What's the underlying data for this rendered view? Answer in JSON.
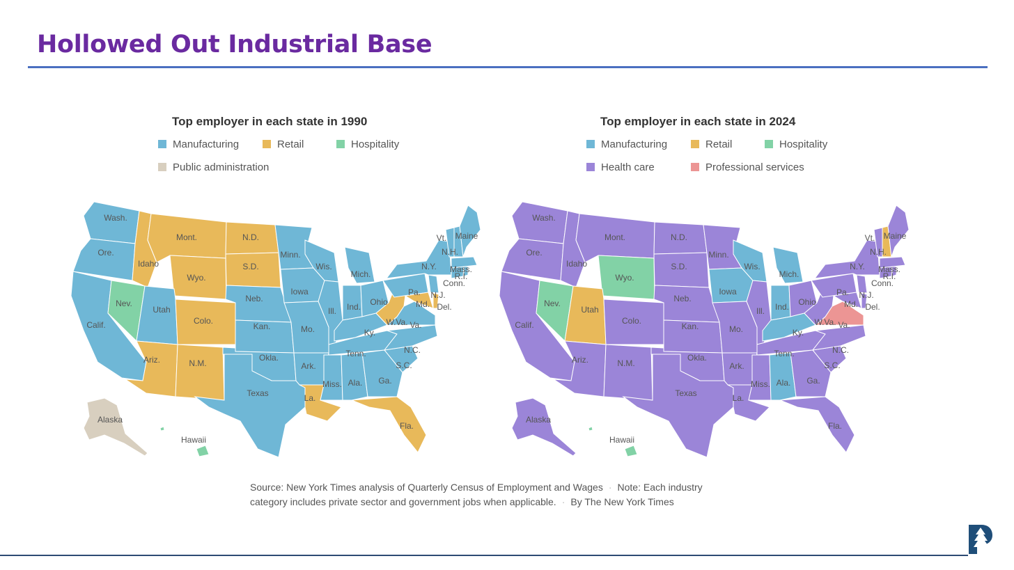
{
  "slide": {
    "title": "Hollowed Out Industrial Base"
  },
  "colors": {
    "Manufacturing": "#6fb7d6",
    "Retail": "#e8b95a",
    "Hospitality": "#82d2a6",
    "Public administration": "#d8cfbf",
    "Health care": "#9b85d8",
    "Professional services": "#ec9594",
    "border": "#ffffff",
    "title": "#6a2aa0",
    "rule": "#4a6fc0"
  },
  "maps": [
    {
      "title": "Top employer in each state in 1990",
      "legend": [
        "Manufacturing",
        "Retail",
        "Hospitality",
        "Public administration"
      ],
      "states": {
        "Wash.": "Manufacturing",
        "Ore.": "Manufacturing",
        "Calif.": "Manufacturing",
        "Nev.": "Hospitality",
        "Idaho": "Retail",
        "Mont.": "Retail",
        "Wyo.": "Retail",
        "Utah": "Manufacturing",
        "Colo.": "Retail",
        "Ariz.": "Retail",
        "N.M.": "Retail",
        "N.D.": "Retail",
        "S.D.": "Retail",
        "Neb.": "Manufacturing",
        "Kan.": "Manufacturing",
        "Okla.": "Manufacturing",
        "Texas": "Manufacturing",
        "Minn.": "Manufacturing",
        "Iowa": "Manufacturing",
        "Mo.": "Manufacturing",
        "Ark.": "Manufacturing",
        "La.": "Retail",
        "Wis.": "Manufacturing",
        "Ill.": "Manufacturing",
        "Mich.": "Manufacturing",
        "Ind.": "Manufacturing",
        "Ohio": "Manufacturing",
        "Ky.": "Manufacturing",
        "Tenn.": "Manufacturing",
        "Miss.": "Manufacturing",
        "Ala.": "Manufacturing",
        "Ga.": "Manufacturing",
        "Fla.": "Retail",
        "S.C.": "Manufacturing",
        "N.C.": "Manufacturing",
        "Va.": "Manufacturing",
        "W.Va.": "Retail",
        "Pa.": "Manufacturing",
        "N.Y.": "Manufacturing",
        "Md.": "Retail",
        "Del.": "Retail",
        "N.J.": "Manufacturing",
        "Conn.": "Manufacturing",
        "R.I.": "Manufacturing",
        "Mass.": "Manufacturing",
        "Vt.": "Manufacturing",
        "N.H.": "Manufacturing",
        "Maine": "Manufacturing",
        "Alaska": "Public administration",
        "Hawaii": "Hospitality"
      }
    },
    {
      "title": "Top employer in each state in 2024",
      "legend": [
        "Manufacturing",
        "Retail",
        "Hospitality",
        "Health care",
        "Professional services"
      ],
      "states": {
        "Wash.": "Health care",
        "Ore.": "Health care",
        "Calif.": "Health care",
        "Nev.": "Hospitality",
        "Idaho": "Health care",
        "Mont.": "Health care",
        "Wyo.": "Hospitality",
        "Utah": "Retail",
        "Colo.": "Health care",
        "Ariz.": "Health care",
        "N.M.": "Health care",
        "N.D.": "Health care",
        "S.D.": "Health care",
        "Neb.": "Health care",
        "Kan.": "Health care",
        "Okla.": "Health care",
        "Texas": "Health care",
        "Minn.": "Health care",
        "Iowa": "Manufacturing",
        "Mo.": "Health care",
        "Ark.": "Health care",
        "La.": "Health care",
        "Wis.": "Manufacturing",
        "Ill.": "Health care",
        "Mich.": "Manufacturing",
        "Ind.": "Manufacturing",
        "Ohio": "Health care",
        "Ky.": "Manufacturing",
        "Tenn.": "Health care",
        "Miss.": "Health care",
        "Ala.": "Manufacturing",
        "Ga.": "Health care",
        "Fla.": "Health care",
        "S.C.": "Health care",
        "N.C.": "Health care",
        "Va.": "Professional services",
        "W.Va.": "Health care",
        "Pa.": "Health care",
        "N.Y.": "Health care",
        "Md.": "Health care",
        "Del.": "Health care",
        "N.J.": "Health care",
        "Conn.": "Health care",
        "R.I.": "Health care",
        "Mass.": "Health care",
        "Vt.": "Health care",
        "N.H.": "Retail",
        "Maine": "Health care",
        "Alaska": "Health care",
        "Hawaii": "Hospitality"
      }
    }
  ],
  "source": {
    "line1": "Source: New York Times analysis of Quarterly Census of Employment and Wages",
    "note": "Note: Each industry",
    "line2": "category includes private sector and government jobs when applicable.",
    "byline": "By The New York Times"
  },
  "logo": {
    "icon": "tree-p-logo"
  }
}
